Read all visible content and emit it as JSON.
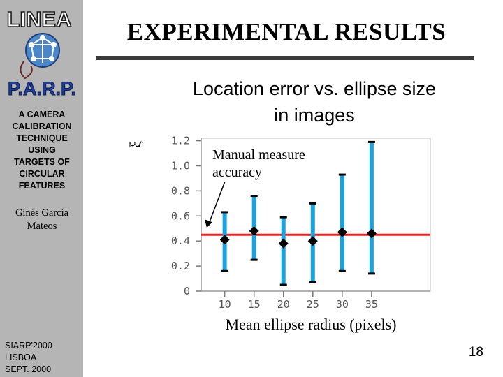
{
  "sidebar": {
    "logo_top": "LINEA",
    "logo_bottom": "P.A.R.P.",
    "talk_title_lines": [
      "A CAMERA",
      "CALIBRATION",
      "TECHNIQUE",
      "USING",
      "TARGETS OF",
      "CIRCULAR",
      "FEATURES"
    ],
    "author_lines": [
      "Ginés García",
      "Mateos"
    ],
    "conference_lines": [
      "SIARP'2000",
      "LISBOA",
      "SEPT. 2000"
    ]
  },
  "slide": {
    "title": "EXPERIMENTAL RESULTS",
    "subtitle_lines": [
      "Location error vs. ellipse size",
      "in images"
    ],
    "page_number": "18"
  },
  "colors": {
    "sidebar": "#b5b5b5",
    "error_bar": "#1aa3e0",
    "mean_marker": "#000000",
    "reference_line": "#e8231f"
  },
  "chart_data": {
    "type": "scatter",
    "title": "Location error vs. ellipse size in images",
    "xlabel": "Mean ellipse radius (pixels)",
    "ylabel": "ξ",
    "x": [
      10,
      15,
      20,
      25,
      30,
      35
    ],
    "x_tick_labels": [
      "10",
      "15",
      "20",
      "25",
      "30",
      "35"
    ],
    "y_ticks": [
      0,
      0.2,
      0.4,
      0.6,
      0.8,
      1.0,
      1.2
    ],
    "y_tick_labels": [
      "0",
      "0.2",
      "0.4",
      "0.6",
      "0.8",
      "1.0",
      "1.2"
    ],
    "xlim": [
      6,
      45
    ],
    "ylim": [
      0,
      1.22
    ],
    "series": [
      {
        "mean": [
          0.41,
          0.48,
          0.38,
          0.4,
          0.47,
          0.46
        ],
        "min": [
          0.16,
          0.25,
          0.05,
          0.07,
          0.16,
          0.14
        ],
        "max": [
          0.63,
          0.76,
          0.59,
          0.7,
          0.93,
          1.19
        ]
      }
    ],
    "reference_line": {
      "y": 0.45
    },
    "annotation": {
      "lines": [
        "Manual measure",
        "accuracy"
      ],
      "points_to_y": 0.45
    },
    "grid": false
  }
}
